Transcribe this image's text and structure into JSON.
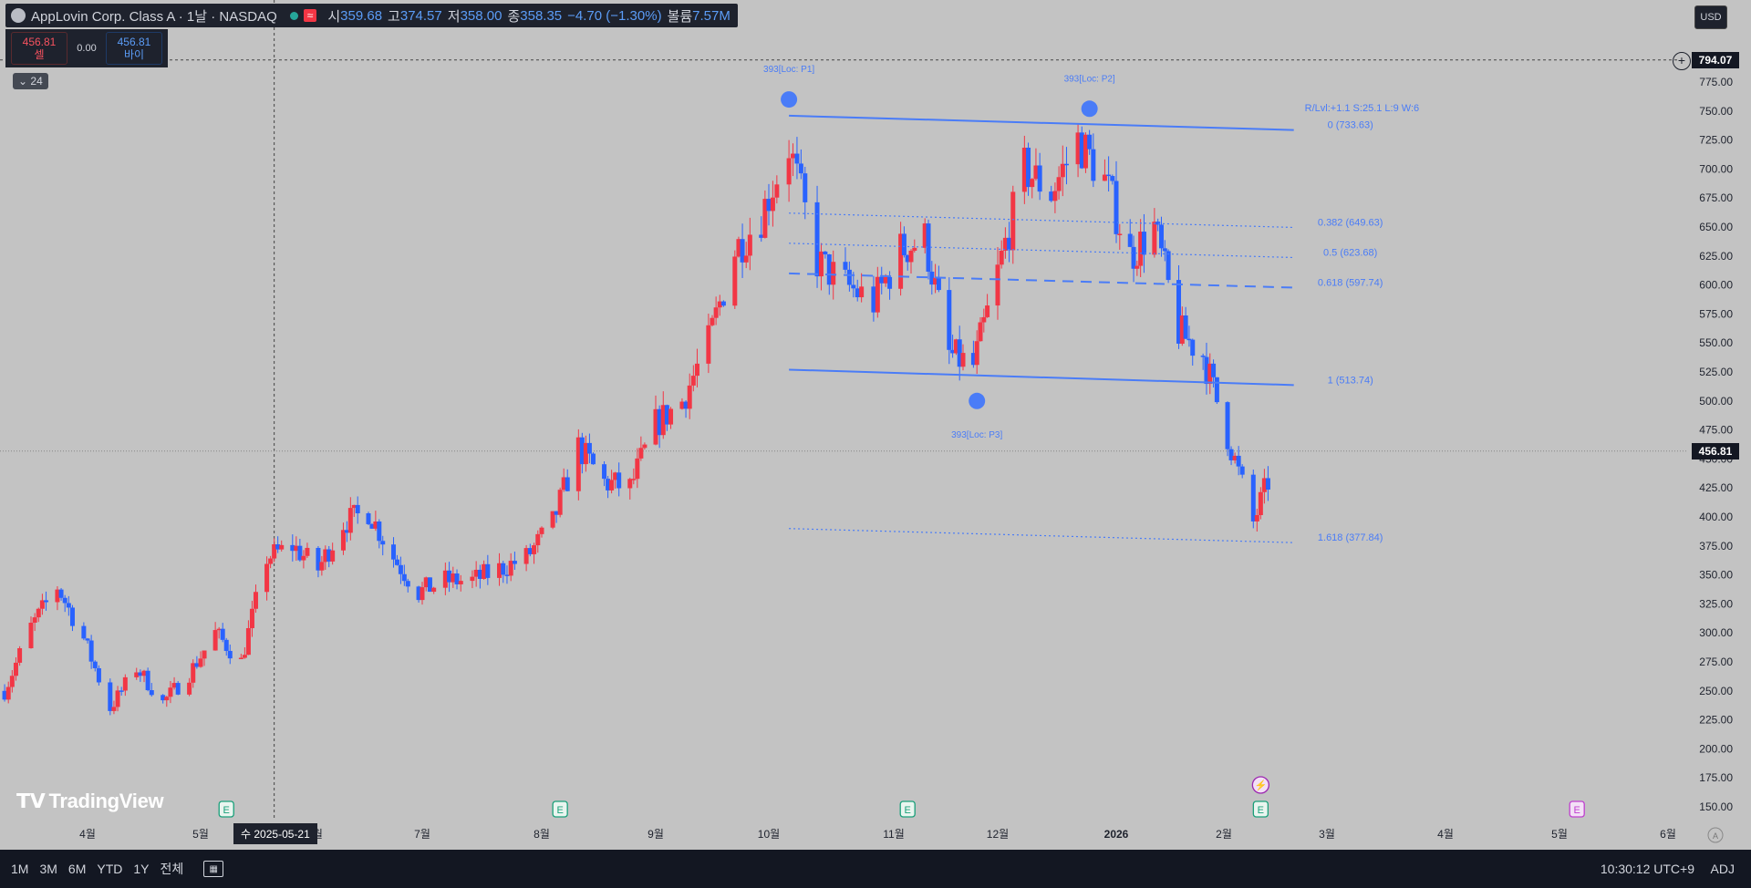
{
  "header": {
    "title": "AppLovin Corp. Class A · 1날 · NASDAQ",
    "wave_badge": "≈",
    "open_label": "시",
    "open": "359.68",
    "high_label": "고",
    "high": "374.57",
    "low_label": "저",
    "low": "358.00",
    "close_label": "종",
    "close": "358.35",
    "change": "−4.70 (−1.30%)",
    "volume_label": "볼륨",
    "volume": "7.57M"
  },
  "trade": {
    "sell_price": "456.81",
    "sell_label": "셀",
    "spread": "0.00",
    "buy_price": "456.81",
    "buy_label": "바이"
  },
  "indicator_toggle": "24",
  "currency": "USD",
  "crosshair_price": "794.07",
  "last_price": "456.81",
  "crosshair_date": "수 2025-05-21",
  "logo": "TradingView",
  "colors": {
    "up": "#f23645",
    "down": "#2962ff",
    "drawing": "#4a7cf7",
    "background": "#c3c3c3"
  },
  "bottom": {
    "ranges": [
      "1M",
      "3M",
      "6M",
      "YTD",
      "1Y",
      "전체"
    ],
    "clock": "10:30:12 UTC+9",
    "adj": "ADJ"
  },
  "chart_data": {
    "type": "candlestick",
    "ylim": [
      135,
      795
    ],
    "y_ticks": [
      150,
      175,
      200,
      225,
      250,
      275,
      300,
      325,
      350,
      375,
      400,
      425,
      450,
      475,
      500,
      525,
      550,
      575,
      600,
      625,
      650,
      675,
      700,
      725,
      750,
      775
    ],
    "x_ticks": [
      "4월",
      "5월",
      "6월",
      "7월",
      "8월",
      "9월",
      "10월",
      "11월",
      "12월",
      "2026",
      "2월",
      "3월",
      "4월",
      "5월",
      "6월"
    ],
    "x_tick_dates": [
      "2025-04-01",
      "2025-05-01",
      "2025-06-01",
      "2025-07-01",
      "2025-08-01",
      "2025-09-01",
      "2025-10-01",
      "2025-11-01",
      "2025-12-01",
      "2026-01-01",
      "2026-02-01",
      "2026-03-01",
      "2026-04-01",
      "2026-05-01",
      "2026-06-01"
    ],
    "grid": false,
    "price_path": [
      {
        "date": "2025-03-10",
        "price": 250
      },
      {
        "date": "2025-03-17",
        "price": 305
      },
      {
        "date": "2025-03-24",
        "price": 340
      },
      {
        "date": "2025-03-31",
        "price": 295
      },
      {
        "date": "2025-04-07",
        "price": 235
      },
      {
        "date": "2025-04-14",
        "price": 270
      },
      {
        "date": "2025-04-21",
        "price": 240
      },
      {
        "date": "2025-04-28",
        "price": 265
      },
      {
        "date": "2025-05-05",
        "price": 300
      },
      {
        "date": "2025-05-12",
        "price": 275
      },
      {
        "date": "2025-05-19",
        "price": 365
      },
      {
        "date": "2025-05-26",
        "price": 375
      },
      {
        "date": "2025-06-02",
        "price": 355
      },
      {
        "date": "2025-06-09",
        "price": 395
      },
      {
        "date": "2025-06-16",
        "price": 405
      },
      {
        "date": "2025-06-23",
        "price": 365
      },
      {
        "date": "2025-06-30",
        "price": 335
      },
      {
        "date": "2025-07-07",
        "price": 345
      },
      {
        "date": "2025-07-14",
        "price": 345
      },
      {
        "date": "2025-07-21",
        "price": 355
      },
      {
        "date": "2025-07-28",
        "price": 365
      },
      {
        "date": "2025-08-04",
        "price": 395
      },
      {
        "date": "2025-08-11",
        "price": 460
      },
      {
        "date": "2025-08-18",
        "price": 430
      },
      {
        "date": "2025-08-25",
        "price": 425
      },
      {
        "date": "2025-09-01",
        "price": 480
      },
      {
        "date": "2025-09-08",
        "price": 500
      },
      {
        "date": "2025-09-15",
        "price": 550
      },
      {
        "date": "2025-09-22",
        "price": 630
      },
      {
        "date": "2025-09-29",
        "price": 660
      },
      {
        "date": "2025-10-06",
        "price": 720
      },
      {
        "date": "2025-10-13",
        "price": 620
      },
      {
        "date": "2025-10-20",
        "price": 600
      },
      {
        "date": "2025-10-27",
        "price": 585
      },
      {
        "date": "2025-11-03",
        "price": 630
      },
      {
        "date": "2025-11-10",
        "price": 640
      },
      {
        "date": "2025-11-17",
        "price": 540
      },
      {
        "date": "2025-11-24",
        "price": 530
      },
      {
        "date": "2025-12-01",
        "price": 610
      },
      {
        "date": "2025-12-08",
        "price": 700
      },
      {
        "date": "2025-12-15",
        "price": 680
      },
      {
        "date": "2025-12-22",
        "price": 725
      },
      {
        "date": "2025-12-29",
        "price": 690
      },
      {
        "date": "2026-01-05",
        "price": 625
      },
      {
        "date": "2026-01-12",
        "price": 650
      },
      {
        "date": "2026-01-19",
        "price": 560
      },
      {
        "date": "2026-01-26",
        "price": 540
      },
      {
        "date": "2026-02-02",
        "price": 470
      },
      {
        "date": "2026-02-09",
        "price": 395
      },
      {
        "date": "2026-02-16",
        "price": 456.81
      }
    ],
    "pattern_points": [
      {
        "label": "393[Loc: P1]",
        "date": "2025-10-06",
        "price": 760
      },
      {
        "label": "393[Loc: P2]",
        "date": "2025-12-25",
        "price": 752
      },
      {
        "label": "393[Loc: P3]",
        "date": "2025-11-25",
        "price": 500
      }
    ],
    "trend_lines": [
      {
        "start": [
          "2025-10-06",
          746
        ],
        "end": [
          "2026-02-20",
          733.63
        ]
      },
      {
        "start": [
          "2025-10-06",
          527
        ],
        "end": [
          "2026-02-20",
          513.74
        ]
      }
    ],
    "fib_levels": [
      {
        "label": "0 (733.63)",
        "start_price": 746,
        "end_price": 733.63,
        "style": "solid"
      },
      {
        "label": "0.382 (649.63)",
        "start_price": 662,
        "end_price": 649.63,
        "style": "dotted"
      },
      {
        "label": "0.5 (623.68)",
        "start_price": 636,
        "end_price": 623.68,
        "style": "dotted"
      },
      {
        "label": "0.618 (597.74)",
        "start_price": 610,
        "end_price": 597.74,
        "style": "dashed"
      },
      {
        "label": "1 (513.74)",
        "start_price": 527,
        "end_price": 513.74,
        "style": "solid"
      },
      {
        "label": "1.618 (377.84)",
        "start_price": 390,
        "end_price": 377.84,
        "style": "dotted"
      }
    ],
    "fib_info": "R/Lvl:+1.1 S:25.1 L:9 W:6",
    "event_markers": [
      {
        "label": "E",
        "date": "2025-05-08"
      },
      {
        "label": "E",
        "date": "2025-08-06"
      },
      {
        "label": "E",
        "date": "2025-11-05"
      },
      {
        "label": "E",
        "date": "2026-02-11"
      },
      {
        "label": "E",
        "date": "2026-05-06"
      }
    ],
    "dividend_marker": {
      "label": "⚡",
      "date": "2026-02-11"
    }
  }
}
